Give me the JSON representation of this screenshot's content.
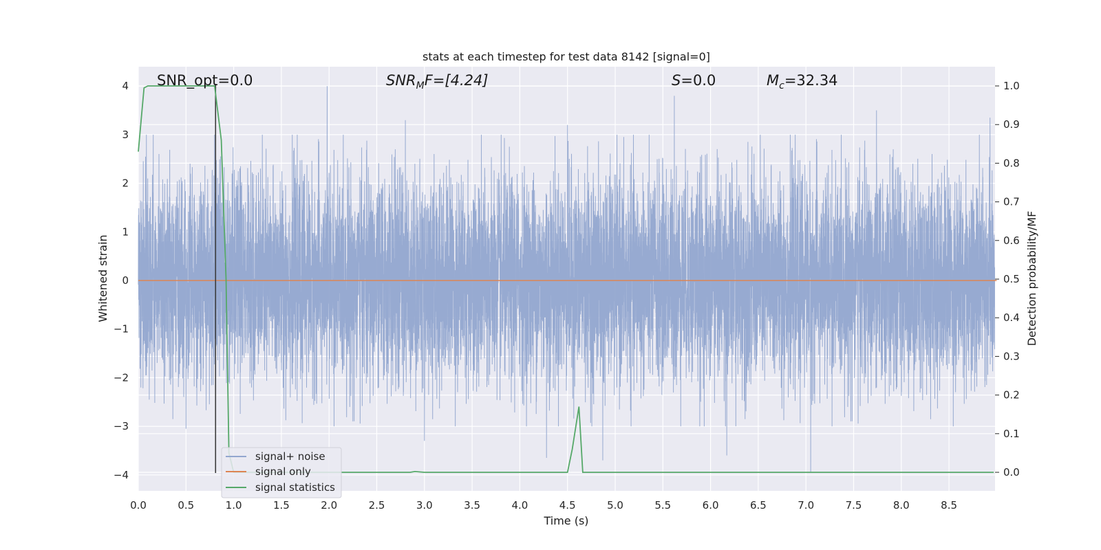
{
  "chart_data": {
    "type": "line",
    "title": "stats at each timestep for test data 8142 [signal=0]",
    "xlabel": "Time (s)",
    "ylabel": "Whitened strain",
    "y2label": "Detection probability/MF",
    "xlim": [
      0.0,
      9.0
    ],
    "ylim": [
      -4.3,
      4.4
    ],
    "y2lim": [
      -0.045,
      1.045
    ],
    "x_ticks": [
      "0.0",
      "0.5",
      "1.0",
      "1.5",
      "2.0",
      "2.5",
      "3.0",
      "3.5",
      "4.0",
      "4.5",
      "5.0",
      "5.5",
      "6.0",
      "6.5",
      "7.0",
      "7.5",
      "8.0",
      "8.5"
    ],
    "y_ticks": [
      "4",
      "3",
      "2",
      "1",
      "0",
      "−1",
      "−2",
      "−3",
      "−4"
    ],
    "y2_ticks": [
      "1.0",
      "0.9",
      "0.8",
      "0.7",
      "0.6",
      "0.5",
      "0.4",
      "0.3",
      "0.2",
      "0.1",
      "0.0"
    ],
    "grid": true,
    "legend_position": "lower-left",
    "annotations": {
      "snr_opt": "SNR_opt=0.0",
      "snr_mf_base": "SNR",
      "snr_mf_sub": "M",
      "snr_mf_rest": "F=[4.24]",
      "s_var": "S",
      "s_rest": "=0.0",
      "mc_var": "M",
      "mc_sub": "c",
      "mc_rest": "=32.34"
    },
    "marker_time": 0.81,
    "series": [
      {
        "name": "signal+ noise",
        "color": "#92a6cf",
        "axis": "left",
        "description_range": [
          -4.0,
          4.0
        ],
        "notable_peaks": [
          {
            "x": 1.98,
            "y": 4.0
          },
          {
            "x": 5.62,
            "y": 3.8
          },
          {
            "x": 7.74,
            "y": 3.5
          },
          {
            "x": 8.93,
            "y": 3.35
          },
          {
            "x": 4.5,
            "y": 3.2
          },
          {
            "x": 2.8,
            "y": 3.3
          },
          {
            "x": 7.05,
            "y": -3.95
          },
          {
            "x": 4.87,
            "y": -3.7
          },
          {
            "x": 6.17,
            "y": -3.6
          },
          {
            "x": 4.28,
            "y": -3.65
          },
          {
            "x": 3.0,
            "y": -3.3
          },
          {
            "x": 0.5,
            "y": -3.05
          }
        ]
      },
      {
        "name": "signal only",
        "color": "#dd8452",
        "axis": "left",
        "x": [
          0.0,
          9.0
        ],
        "y": [
          0.0,
          0.0
        ]
      },
      {
        "name": "signal statistics",
        "color": "#55a868",
        "axis": "right",
        "x": [
          0.0,
          0.06,
          0.1,
          0.2,
          0.5,
          0.78,
          0.8,
          0.87,
          0.92,
          0.95,
          1.0,
          1.5,
          2.0,
          2.5,
          2.85,
          2.9,
          3.0,
          3.5,
          4.0,
          4.45,
          4.5,
          4.55,
          4.62,
          4.66,
          4.7,
          5.0,
          5.5,
          6.0,
          7.0,
          8.0,
          8.97
        ],
        "y": [
          0.83,
          0.995,
          1.0,
          1.0,
          1.0,
          1.0,
          1.0,
          0.86,
          0.5,
          0.05,
          0.0,
          0.0,
          0.0,
          0.0,
          0.0,
          0.002,
          0.0,
          0.0,
          0.0,
          0.0,
          0.0,
          0.06,
          0.17,
          0.0,
          0.0,
          0.0,
          0.0,
          0.0,
          0.0,
          0.0,
          0.0
        ]
      }
    ]
  }
}
